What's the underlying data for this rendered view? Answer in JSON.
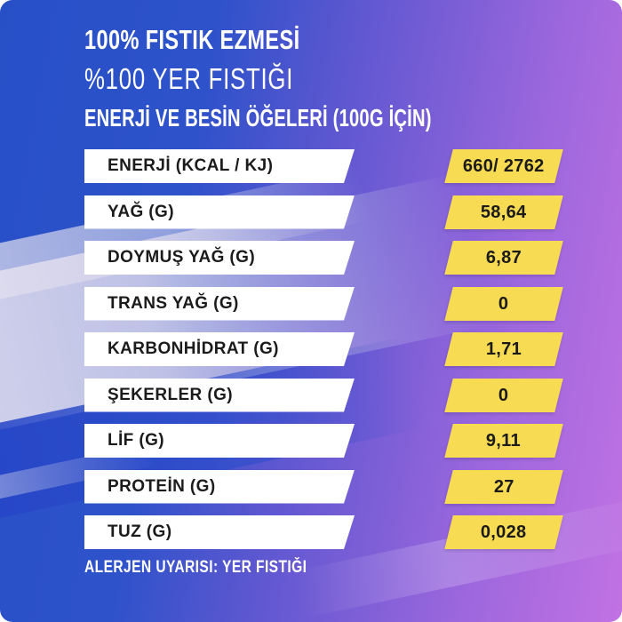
{
  "header": {
    "title": "100% FISTIK EZMESİ",
    "subtitle": "%100 YER FISTIĞI",
    "section_heading": "ENERJİ VE BESİN ÖĞELERİ (100G İÇİN)"
  },
  "table": {
    "rows": [
      {
        "label": "ENERJİ (KCAL / KJ)",
        "value": "660/ 2762"
      },
      {
        "label": "YAĞ (G)",
        "value": "58,64"
      },
      {
        "label": "DOYMUŞ YAĞ (G)",
        "value": "6,87"
      },
      {
        "label": "TRANS YAĞ (G)",
        "value": "0"
      },
      {
        "label": "KARBONHİDRAT (G)",
        "value": "1,71"
      },
      {
        "label": "ŞEKERLER (G)",
        "value": "0"
      },
      {
        "label": "LİF (G)",
        "value": "9,11"
      },
      {
        "label": "PROTEİN (G)",
        "value": "27"
      },
      {
        "label": "TUZ (G)",
        "value": "0,028"
      }
    ]
  },
  "footer": {
    "allergen_warning": "ALERJEN UYARISI: YER FISTIĞI"
  },
  "colors": {
    "accent_yellow": "#F7DB52",
    "royal_blue": "#2750C7",
    "purple": "#C172E3",
    "label_bg": "#FFFFFF",
    "text_dark": "#1B1B1B",
    "text_light": "#FFFFFF"
  }
}
